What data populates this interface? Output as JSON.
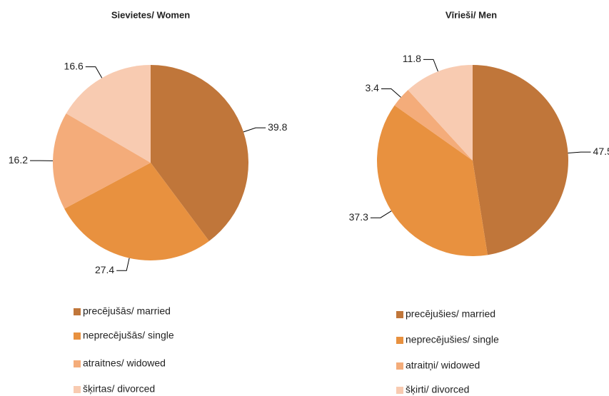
{
  "chart_data": [
    {
      "type": "pie",
      "title": "Sievietes/ Women",
      "labels": [
        "precējušās/ married",
        "neprecējušās/ single",
        "atraitnes/ widowed",
        "šķirtas/ divorced"
      ],
      "values": [
        39.8,
        27.4,
        16.2,
        16.6
      ],
      "colors": [
        "#c0763a",
        "#e8913f",
        "#f4ac7a",
        "#f8cbb1"
      ]
    },
    {
      "type": "pie",
      "title": "Vīrieši/ Men",
      "labels": [
        "precējušies/ married",
        "neprecējušies/ single",
        "atraitņi/ widowed",
        "šķirti/ divorced"
      ],
      "values": [
        47.5,
        37.3,
        3.4,
        11.8
      ],
      "colors": [
        "#c0763a",
        "#e8913f",
        "#f4ac7a",
        "#f8cbb1"
      ]
    }
  ]
}
